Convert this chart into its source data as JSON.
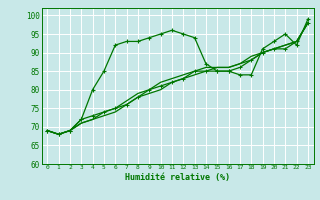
{
  "title": "",
  "xlabel": "Humidité relative (%)",
  "ylabel": "",
  "xlim": [
    -0.5,
    23.5
  ],
  "ylim": [
    60,
    102
  ],
  "yticks": [
    60,
    65,
    70,
    75,
    80,
    85,
    90,
    95,
    100
  ],
  "xticks": [
    0,
    1,
    2,
    3,
    4,
    5,
    6,
    7,
    8,
    9,
    10,
    11,
    12,
    13,
    14,
    15,
    16,
    17,
    18,
    19,
    20,
    21,
    22,
    23
  ],
  "bg_color": "#c8e8e8",
  "grid_color": "#ffffff",
  "line_color": "#007700",
  "line1_x": [
    0,
    1,
    2,
    3,
    4,
    5,
    6,
    7,
    8,
    9,
    10,
    11,
    12,
    13,
    14,
    15,
    16,
    17,
    18,
    19,
    20,
    21,
    22,
    23
  ],
  "line1_y": [
    69,
    68,
    69,
    72,
    80,
    85,
    92,
    93,
    93,
    94,
    95,
    96,
    95,
    94,
    87,
    85,
    85,
    84,
    84,
    91,
    93,
    95,
    92,
    99
  ],
  "line2_x": [
    0,
    1,
    2,
    3,
    4,
    5,
    6,
    7,
    8,
    9,
    10,
    11,
    12,
    13,
    14,
    15,
    16,
    17,
    18,
    19,
    20,
    21,
    22,
    23
  ],
  "line2_y": [
    69,
    68,
    69,
    72,
    73,
    74,
    75,
    76,
    78,
    80,
    81,
    82,
    83,
    85,
    85,
    85,
    85,
    86,
    88,
    90,
    91,
    91,
    93,
    98
  ],
  "line3_x": [
    0,
    1,
    2,
    3,
    4,
    5,
    6,
    7,
    8,
    9,
    10,
    11,
    12,
    13,
    14,
    15,
    16,
    17,
    18,
    19,
    20,
    21,
    22,
    23
  ],
  "line3_y": [
    69,
    68,
    69,
    71,
    72,
    74,
    75,
    77,
    79,
    80,
    82,
    83,
    84,
    85,
    86,
    86,
    86,
    87,
    88,
    90,
    91,
    92,
    93,
    98
  ],
  "line4_x": [
    0,
    1,
    2,
    3,
    4,
    5,
    6,
    7,
    8,
    9,
    10,
    11,
    12,
    13,
    14,
    15,
    16,
    17,
    18,
    19,
    20,
    21,
    22,
    23
  ],
  "line4_y": [
    69,
    68,
    69,
    71,
    72,
    73,
    74,
    76,
    78,
    79,
    80,
    82,
    83,
    84,
    85,
    86,
    86,
    87,
    89,
    90,
    91,
    92,
    93,
    98
  ]
}
